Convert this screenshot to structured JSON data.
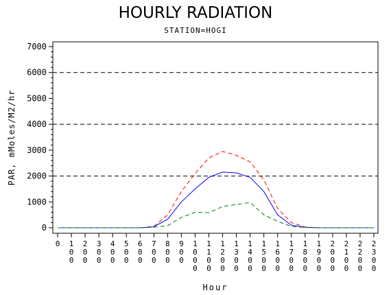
{
  "title": "HOURLY RADIATION",
  "subtitle": "STATION=HOGI",
  "chart_data": {
    "type": "line",
    "title": "HOURLY RADIATION",
    "subtitle": "STATION=HOGI",
    "xlabel": "Hour",
    "ylabel": "PAR, mMoles/M2/hr",
    "xlim": [
      0,
      23
    ],
    "ylim": [
      0,
      7000
    ],
    "x": [
      0,
      1,
      2,
      3,
      4,
      5,
      6,
      7,
      8,
      9,
      10,
      11,
      12,
      13,
      14,
      15,
      16,
      17,
      18,
      19,
      20,
      21,
      22,
      23
    ],
    "x_tick_labels": [
      "0",
      "100",
      "200",
      "300",
      "400",
      "500",
      "600",
      "700",
      "800",
      "900",
      "1000",
      "1100",
      "1200",
      "1300",
      "1400",
      "1500",
      "1600",
      "1700",
      "1800",
      "1900",
      "2000",
      "2100",
      "2200",
      "2300"
    ],
    "y_ticks": [
      0,
      1000,
      2000,
      3000,
      4000,
      5000,
      6000,
      7000
    ],
    "reference_lines": [
      2000,
      4000,
      6000
    ],
    "grid": false,
    "series": [
      {
        "color": "#ff0000",
        "style": "dashed",
        "values": [
          0,
          0,
          0,
          0,
          0,
          0,
          0,
          50,
          500,
          1400,
          2100,
          2700,
          2950,
          2800,
          2550,
          1850,
          750,
          200,
          30,
          0,
          0,
          0,
          0,
          0
        ]
      },
      {
        "color": "#0000ff",
        "style": "solid",
        "values": [
          0,
          0,
          0,
          0,
          0,
          0,
          0,
          40,
          330,
          1000,
          1500,
          1950,
          2150,
          2120,
          1950,
          1400,
          500,
          100,
          20,
          0,
          0,
          0,
          0,
          0
        ]
      },
      {
        "color": "#008000",
        "style": "dashed",
        "values": [
          0,
          0,
          0,
          0,
          0,
          0,
          0,
          20,
          80,
          400,
          600,
          580,
          820,
          900,
          980,
          500,
          250,
          50,
          10,
          0,
          0,
          0,
          0,
          0
        ]
      }
    ]
  }
}
